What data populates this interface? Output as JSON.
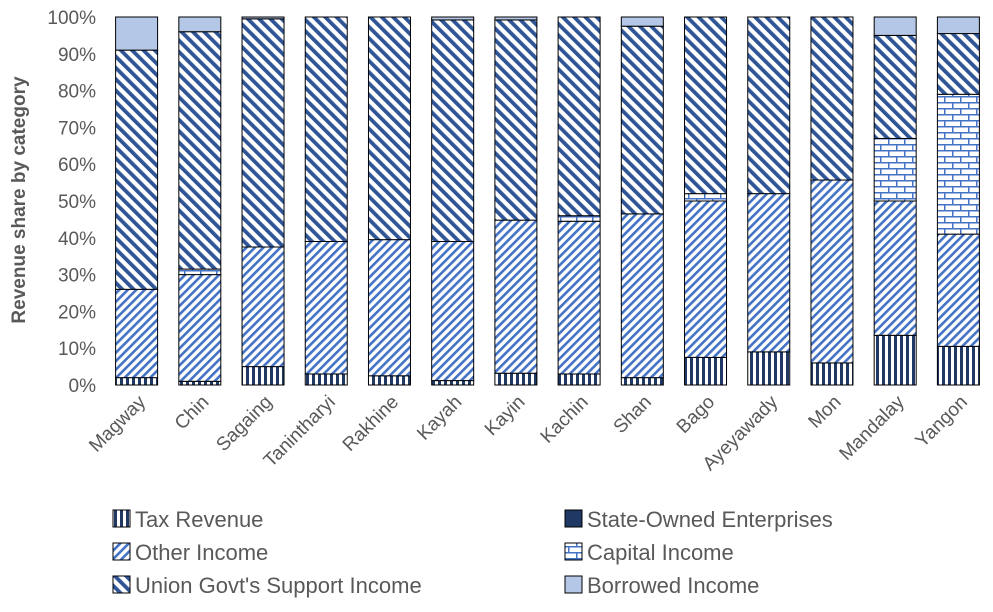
{
  "chart_data": {
    "type": "bar",
    "stacked": true,
    "percent": true,
    "title": "",
    "xlabel": "",
    "ylabel": "Revenue share by category",
    "ylim": [
      0,
      100
    ],
    "yticks": [
      "0%",
      "10%",
      "20%",
      "30%",
      "40%",
      "50%",
      "60%",
      "70%",
      "80%",
      "90%",
      "100%"
    ],
    "grid": false,
    "legend_position": "bottom",
    "categories": [
      "Magway",
      "Chin",
      "Sagaing",
      "Tanintharyi",
      "Rakhine",
      "Kayah",
      "Kayin",
      "Kachin",
      "Shan",
      "Bago",
      "Ayeyawady",
      "Mon",
      "Mandalay",
      "Yangon"
    ],
    "series": [
      {
        "name": "Tax Revenue",
        "color": "#1F3864",
        "pattern": "vertical-stripes",
        "values": [
          2,
          1,
          5,
          3,
          2.5,
          1.2,
          3.2,
          3,
          2,
          7.5,
          9,
          6,
          13.5,
          10.5
        ]
      },
      {
        "name": "State-Owned Enterprises",
        "color": "#1F3864",
        "pattern": "solid",
        "values": [
          0,
          0,
          0,
          0,
          0,
          0,
          0,
          0,
          0,
          0,
          0,
          0,
          0,
          0
        ]
      },
      {
        "name": "Other Income",
        "color": "#4472C4",
        "pattern": "diagonal-up",
        "values": [
          24,
          29,
          32.5,
          36,
          37,
          37.8,
          41.6,
          41.5,
          44.5,
          42.5,
          43,
          49.7,
          36.5,
          30.5
        ]
      },
      {
        "name": "Capital Income",
        "color": "#4472C4",
        "pattern": "brick",
        "values": [
          0,
          1.5,
          0,
          0,
          0,
          0,
          0,
          1.5,
          0,
          2,
          0,
          0,
          17,
          38
        ]
      },
      {
        "name": "Union Govt's Support Income",
        "color": "#2F5597",
        "pattern": "diagonal-down",
        "values": [
          65,
          64.5,
          62,
          61,
          60.5,
          60.2,
          54.4,
          54,
          51,
          48,
          48,
          44.3,
          28,
          16.5
        ]
      },
      {
        "name": "Borrowed Income",
        "color": "#B4C7E7",
        "pattern": "solid",
        "values": [
          9,
          4,
          0.5,
          0,
          0,
          0.8,
          0.8,
          0,
          2.5,
          0,
          0,
          0,
          5,
          4.5
        ]
      }
    ]
  }
}
